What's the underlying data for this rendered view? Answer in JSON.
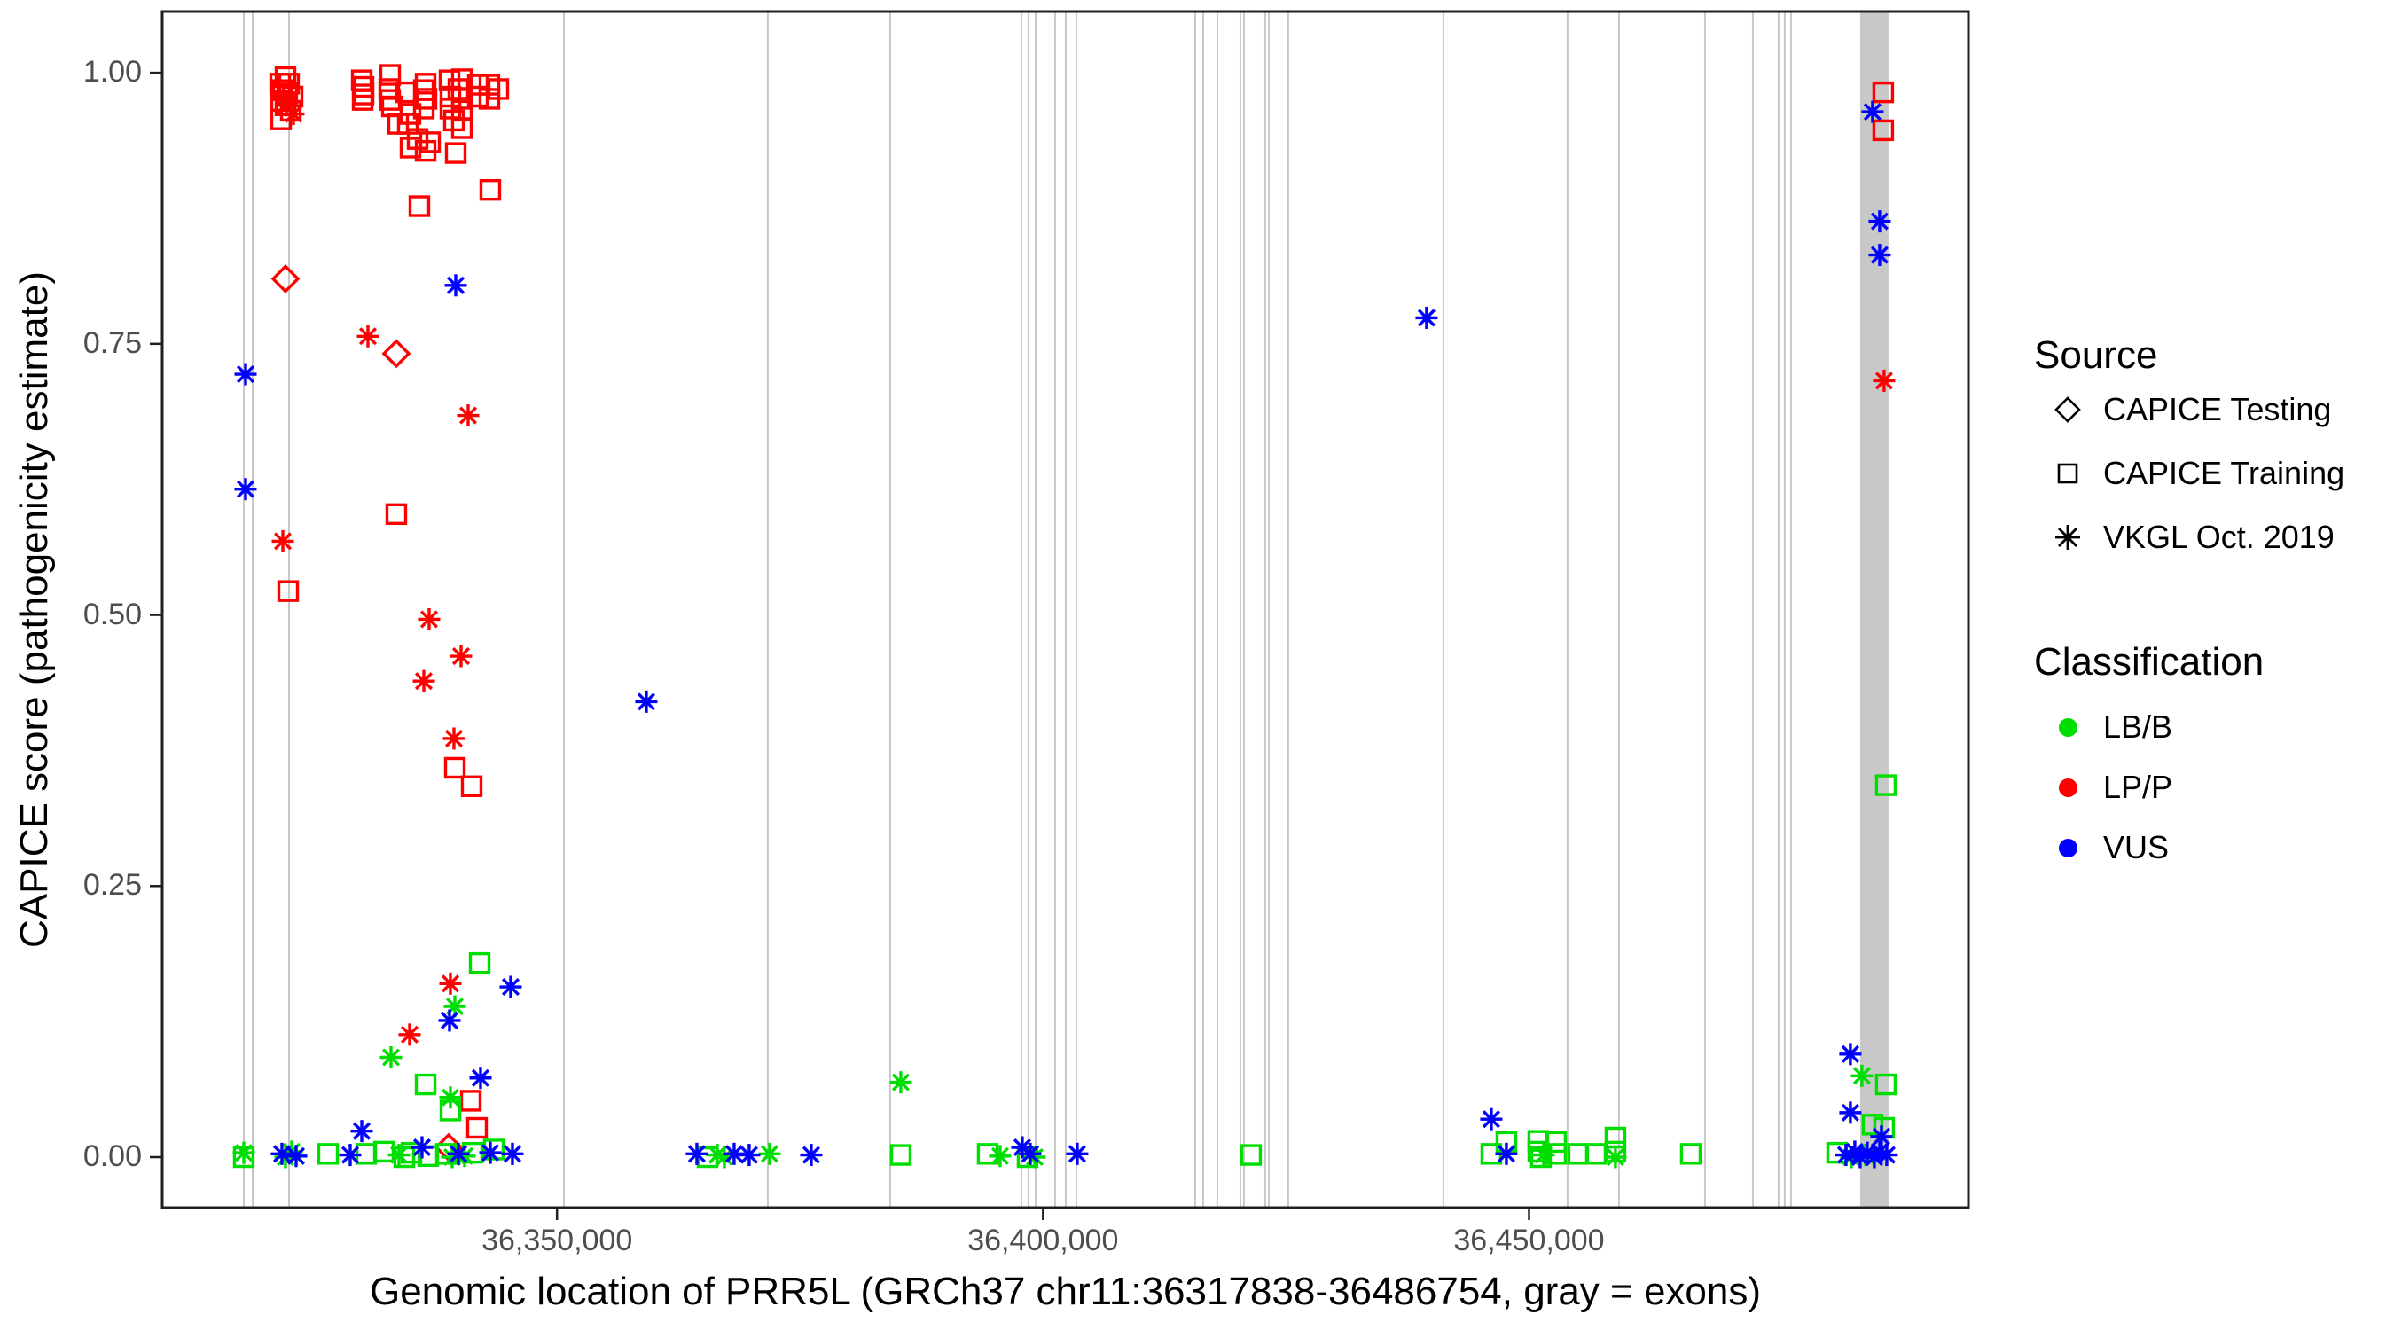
{
  "figure": {
    "x_axis_title": "Genomic location of PRR5L (GRCh37 chr11:36317838-36486754, gray = exons)",
    "y_axis_title": "CAPICE score (pathogenicity estimate)"
  },
  "legend": {
    "source": {
      "title": "Source",
      "items": [
        {
          "symbol": "diamond-open",
          "label": "CAPICE Testing"
        },
        {
          "symbol": "square-open",
          "label": "CAPICE Training"
        },
        {
          "symbol": "asterisk",
          "label": "VKGL Oct. 2019"
        }
      ]
    },
    "classification": {
      "title": "Classification",
      "items": [
        {
          "color_key": "lbb",
          "label": "LB/B"
        },
        {
          "color_key": "lpp",
          "label": "LP/P"
        },
        {
          "color_key": "vus",
          "label": "VUS"
        }
      ]
    }
  },
  "style": {
    "colors": {
      "lbb": "#00dd00",
      "lpp": "#ff0000",
      "vus": "#0000ff"
    },
    "exon_line_color": "#c8c8c8",
    "exon_band_color": "#c8c8c8",
    "axis_text_color": "#4d4d4d",
    "panel_border_color": "#1f1f1f"
  },
  "chart_data": {
    "type": "scatter",
    "title": "",
    "xlabel": "Genomic location of PRR5L (GRCh37 chr11:36317838-36486754, gray = exons)",
    "ylabel": "CAPICE score (pathogenicity estimate)",
    "x_domain": [
      36309392,
      36495200
    ],
    "y_domain": [
      -0.0466,
      1.0565
    ],
    "x_ticks": [
      {
        "value": 36350000,
        "label": "36,350,000"
      },
      {
        "value": 36400000,
        "label": "36,400,000"
      },
      {
        "value": 36450000,
        "label": "36,450,000"
      }
    ],
    "y_ticks": [
      {
        "value": 0.0,
        "label": "0.00"
      },
      {
        "value": 0.25,
        "label": "0.25"
      },
      {
        "value": 0.5,
        "label": "0.50"
      },
      {
        "value": 0.75,
        "label": "0.75"
      },
      {
        "value": 1.0,
        "label": "1.00"
      }
    ],
    "grid": false,
    "legend_position": "right",
    "exon_lines_bp": [
      36317780,
      36318696,
      36322436,
      36350711,
      36371688,
      36384275,
      36397775,
      36398504,
      36399234,
      36401241,
      36402335,
      36403430,
      36415653,
      36416474,
      36417933,
      36420305,
      36420670,
      36422859,
      36423224,
      36425230,
      36441193,
      36453963,
      36459254,
      36468102,
      36473028,
      36475673,
      36476311,
      36476950
    ],
    "exon_band_bp": [
      36484065,
      36486983
    ],
    "series": [
      {
        "name": "CAPICE Testing LP/P",
        "source": "CAPICE Testing",
        "classification": "LP/P",
        "marker": "diamond",
        "color_key": "lpp",
        "points": [
          [
            36322071,
            0.81
          ],
          [
            36333472,
            0.741
          ],
          [
            36338854,
            0.009
          ]
        ]
      },
      {
        "name": "CAPICE Training LP/P",
        "source": "CAPICE Training",
        "classification": "LP/P",
        "marker": "square",
        "color_key": "lpp",
        "points": [
          [
            36322071,
            0.996
          ],
          [
            36321524,
            0.99
          ],
          [
            36322436,
            0.99
          ],
          [
            36321797,
            0.984
          ],
          [
            36322253,
            0.981
          ],
          [
            36322800,
            0.978
          ],
          [
            36321615,
            0.974
          ],
          [
            36322071,
            0.97
          ],
          [
            36322618,
            0.965
          ],
          [
            36321615,
            0.957
          ],
          [
            36329915,
            0.993
          ],
          [
            36330097,
            0.987
          ],
          [
            36330097,
            0.98
          ],
          [
            36330006,
            0.975
          ],
          [
            36332834,
            0.998
          ],
          [
            36332742,
            0.985
          ],
          [
            36332834,
            0.975
          ],
          [
            36333016,
            0.969
          ],
          [
            36334475,
            0.982
          ],
          [
            36333654,
            0.953
          ],
          [
            36334658,
            0.953
          ],
          [
            36334931,
            0.962
          ],
          [
            36336482,
            0.99
          ],
          [
            36336300,
            0.984
          ],
          [
            36336573,
            0.976
          ],
          [
            36336300,
            0.967
          ],
          [
            36338945,
            0.993
          ],
          [
            36340221,
            0.994
          ],
          [
            36339857,
            0.985
          ],
          [
            36339036,
            0.978
          ],
          [
            36340221,
            0.976
          ],
          [
            36339036,
            0.967
          ],
          [
            36340221,
            0.965
          ],
          [
            36339401,
            0.956
          ],
          [
            36340221,
            0.949
          ],
          [
            36341863,
            0.989
          ],
          [
            36343049,
            0.989
          ],
          [
            36343961,
            0.985
          ],
          [
            36341863,
            0.978
          ],
          [
            36343049,
            0.976
          ],
          [
            36335661,
            0.939
          ],
          [
            36336938,
            0.936
          ],
          [
            36334931,
            0.931
          ],
          [
            36336482,
            0.928
          ],
          [
            36339583,
            0.926
          ],
          [
            36335844,
            0.877
          ],
          [
            36343140,
            0.892
          ],
          [
            36333472,
            0.593
          ],
          [
            36322345,
            0.522
          ],
          [
            36339492,
            0.359
          ],
          [
            36341225,
            0.342
          ],
          [
            36341134,
            0.052
          ],
          [
            36341772,
            0.027
          ],
          [
            36486436,
            0.982
          ],
          [
            36486436,
            0.947
          ]
        ]
      },
      {
        "name": "VKGL LP/P",
        "source": "VKGL Oct. 2019",
        "classification": "LP/P",
        "marker": "asterisk",
        "color_key": "lpp",
        "points": [
          [
            36322162,
            0.97
          ],
          [
            36322892,
            0.962
          ],
          [
            36330553,
            0.757
          ],
          [
            36340860,
            0.684
          ],
          [
            36321797,
            0.568
          ],
          [
            36336847,
            0.496
          ],
          [
            36340130,
            0.462
          ],
          [
            36336300,
            0.439
          ],
          [
            36339401,
            0.386
          ],
          [
            36339036,
            0.16
          ],
          [
            36334840,
            0.113
          ],
          [
            36486527,
            0.716
          ]
        ]
      },
      {
        "name": "CAPICE Training LB/B",
        "source": "CAPICE Training",
        "classification": "LB/B",
        "marker": "square",
        "color_key": "lbb",
        "points": [
          [
            36342046,
            0.179
          ],
          [
            36336482,
            0.067
          ],
          [
            36339036,
            0.043
          ],
          [
            36317780,
            0.0
          ],
          [
            36326449,
            0.003
          ],
          [
            36330371,
            0.003
          ],
          [
            36332195,
            0.005
          ],
          [
            36334293,
            0.0
          ],
          [
            36335023,
            0.004
          ],
          [
            36336756,
            0.001
          ],
          [
            36338580,
            0.003
          ],
          [
            36341316,
            0.004
          ],
          [
            36343505,
            0.007
          ],
          [
            36365485,
            0.0
          ],
          [
            36385370,
            0.002
          ],
          [
            36394309,
            0.003
          ],
          [
            36398413,
            0.0
          ],
          [
            36421400,
            0.002
          ],
          [
            36446119,
            0.003
          ],
          [
            36447670,
            0.014
          ],
          [
            36450953,
            0.015
          ],
          [
            36450953,
            0.005
          ],
          [
            36451227,
            0.0
          ],
          [
            36452778,
            0.014
          ],
          [
            36452778,
            0.003
          ],
          [
            36455058,
            0.003
          ],
          [
            36456882,
            0.003
          ],
          [
            36458889,
            0.018
          ],
          [
            36458889,
            0.005
          ],
          [
            36466642,
            0.003
          ],
          [
            36481693,
            0.004
          ],
          [
            36486709,
            0.343
          ],
          [
            36486709,
            0.067
          ],
          [
            36485341,
            0.03
          ],
          [
            36486527,
            0.027
          ]
        ]
      },
      {
        "name": "VKGL LB/B",
        "source": "VKGL Oct. 2019",
        "classification": "LB/B",
        "marker": "asterisk",
        "color_key": "lbb",
        "points": [
          [
            36339492,
            0.139
          ],
          [
            36332925,
            0.092
          ],
          [
            36339036,
            0.055
          ],
          [
            36317780,
            0.004
          ],
          [
            36322071,
            0.0
          ],
          [
            36322709,
            0.005
          ],
          [
            36333746,
            0.002
          ],
          [
            36339218,
            0.0
          ],
          [
            36340495,
            0.001
          ],
          [
            36366489,
            0.002
          ],
          [
            36367218,
            0.0
          ],
          [
            36371870,
            0.003
          ],
          [
            36385370,
            0.069
          ],
          [
            36395586,
            0.001
          ],
          [
            36399143,
            0.0
          ],
          [
            36451501,
            0.002
          ],
          [
            36458889,
            0.0
          ],
          [
            36484247,
            0.075
          ],
          [
            36483152,
            0.0
          ],
          [
            36484612,
            0.002
          ]
        ]
      },
      {
        "name": "VKGL VUS",
        "source": "VKGL Oct. 2019",
        "classification": "VUS",
        "marker": "asterisk",
        "color_key": "vus",
        "points": [
          [
            36339583,
            0.804
          ],
          [
            36317966,
            0.722
          ],
          [
            36317966,
            0.616
          ],
          [
            36359192,
            0.42
          ],
          [
            36439460,
            0.774
          ],
          [
            36345238,
            0.157
          ],
          [
            36338945,
            0.126
          ],
          [
            36342137,
            0.073
          ],
          [
            36329915,
            0.024
          ],
          [
            36336117,
            0.009
          ],
          [
            36321706,
            0.003
          ],
          [
            36323165,
            0.001
          ],
          [
            36328729,
            0.002
          ],
          [
            36339857,
            0.003
          ],
          [
            36343140,
            0.004
          ],
          [
            36345420,
            0.003
          ],
          [
            36364391,
            0.003
          ],
          [
            36368222,
            0.003
          ],
          [
            36369772,
            0.002
          ],
          [
            36376157,
            0.002
          ],
          [
            36397866,
            0.009
          ],
          [
            36398687,
            0.003
          ],
          [
            36403521,
            0.003
          ],
          [
            36446119,
            0.035
          ],
          [
            36447670,
            0.003
          ],
          [
            36485341,
            0.964
          ],
          [
            36486071,
            0.863
          ],
          [
            36486071,
            0.832
          ],
          [
            36483061,
            0.095
          ],
          [
            36483061,
            0.041
          ],
          [
            36486253,
            0.019
          ],
          [
            36482605,
            0.002
          ],
          [
            36483517,
            0.005
          ],
          [
            36484065,
            0.0
          ],
          [
            36484794,
            0.004
          ],
          [
            36485524,
            0.0
          ],
          [
            36486071,
            0.005
          ],
          [
            36486800,
            0.002
          ]
        ]
      }
    ]
  }
}
